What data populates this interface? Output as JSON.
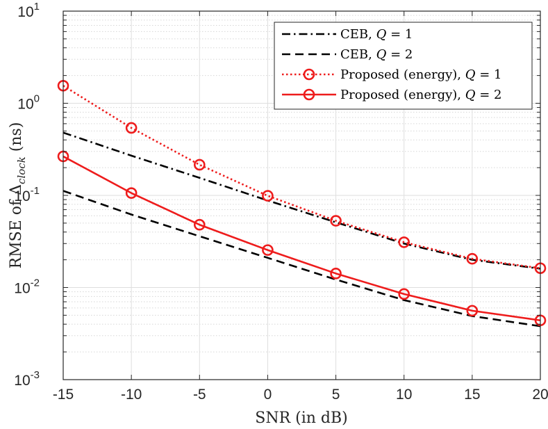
{
  "chart_data": {
    "type": "line",
    "xscale": "linear",
    "yscale": "log",
    "xlabel": "SNR (in dB)",
    "ylabel_parts": {
      "prefix": "RMSE of Δ",
      "subscript": "clock",
      "suffix": " (ns)"
    },
    "xlim": [
      -15,
      20
    ],
    "ylim": [
      0.001,
      10
    ],
    "grid": true,
    "legend_position": "top-right",
    "x_ticks": [
      {
        "value": -15,
        "label": "-15"
      },
      {
        "value": -10,
        "label": "-10"
      },
      {
        "value": -5,
        "label": "-5"
      },
      {
        "value": 0,
        "label": "0"
      },
      {
        "value": 5,
        "label": "5"
      },
      {
        "value": 10,
        "label": "10"
      },
      {
        "value": 15,
        "label": "15"
      },
      {
        "value": 20,
        "label": "20"
      }
    ],
    "y_ticks": [
      {
        "value": 0.001,
        "base": "10",
        "exp": "-3"
      },
      {
        "value": 0.01,
        "base": "10",
        "exp": "-2"
      },
      {
        "value": 0.1,
        "base": "10",
        "exp": "-1"
      },
      {
        "value": 1,
        "base": "10",
        "exp": "0"
      },
      {
        "value": 10,
        "base": "10",
        "exp": "1"
      }
    ],
    "x": [
      -15,
      -10,
      -5,
      0,
      5,
      10,
      15,
      20
    ],
    "series": [
      {
        "id": "ceb-q1",
        "name_text": "CEB, ",
        "name_var": "Q",
        "name_eq": " = 1",
        "color": "#000000",
        "dash": "dashdot",
        "marker": "none",
        "values": [
          0.48,
          0.27,
          0.155,
          0.088,
          0.051,
          0.03,
          0.02,
          0.016
        ]
      },
      {
        "id": "ceb-q2",
        "name_text": "CEB, ",
        "name_var": "Q",
        "name_eq": " = 2",
        "color": "#000000",
        "dash": "dashed",
        "marker": "none",
        "values": [
          0.112,
          0.062,
          0.036,
          0.021,
          0.0122,
          0.0073,
          0.0049,
          0.0038
        ]
      },
      {
        "id": "proposed-q1",
        "name_text": "Proposed (energy), ",
        "name_var": "Q",
        "name_eq": " = 1",
        "color": "#ee1c1c",
        "dash": "dotted",
        "marker": "circle",
        "values": [
          1.55,
          0.54,
          0.215,
          0.099,
          0.053,
          0.031,
          0.0205,
          0.0162
        ]
      },
      {
        "id": "proposed-q2",
        "name_text": "Proposed (energy), ",
        "name_var": "Q",
        "name_eq": " = 2",
        "color": "#ee1c1c",
        "dash": "solid",
        "marker": "circle",
        "values": [
          0.265,
          0.106,
          0.048,
          0.0255,
          0.0142,
          0.0085,
          0.0056,
          0.0044
        ]
      }
    ]
  }
}
